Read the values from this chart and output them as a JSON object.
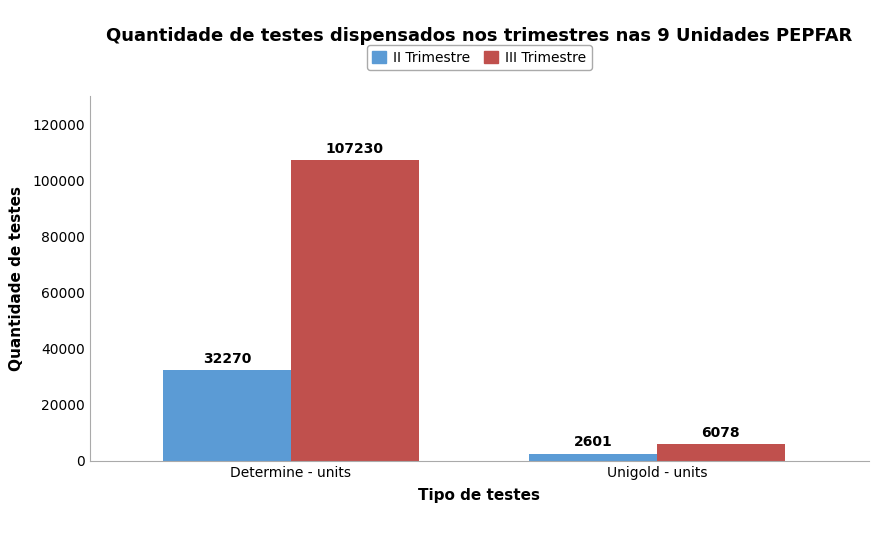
{
  "title": "Quantidade de testes dispensados nos trimestres nas 9 Unidades PEPFAR",
  "xlabel": "Tipo de testes",
  "ylabel": "Quantidade de testes",
  "categories": [
    "Determine - units",
    "Unigold - units"
  ],
  "series": [
    {
      "label": "II Trimestre",
      "values": [
        32270,
        2601
      ],
      "color": "#5B9BD5"
    },
    {
      "label": "III Trimestre",
      "values": [
        107230,
        6078
      ],
      "color": "#C0504D"
    }
  ],
  "ylim": [
    0,
    130000
  ],
  "yticks": [
    0,
    20000,
    40000,
    60000,
    80000,
    100000,
    120000
  ],
  "bar_width": 0.35,
  "background_color": "#FFFFFF",
  "title_fontsize": 13,
  "label_fontsize": 11,
  "tick_fontsize": 10,
  "annotation_fontsize": 10,
  "legend_fontsize": 10
}
